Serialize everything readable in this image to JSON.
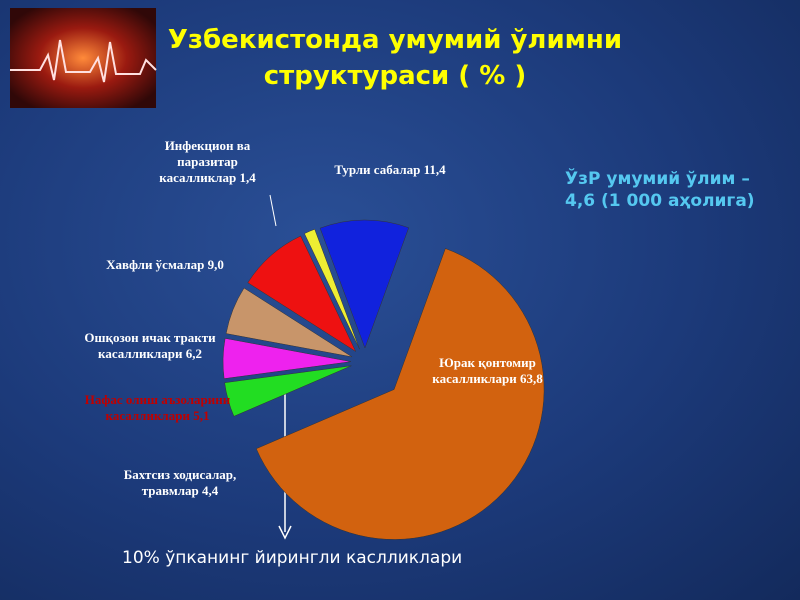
{
  "chart_data": {
    "type": "pie",
    "title": "Узбекистонда умумий ўлимни структураси ( % )",
    "categories": [
      "Юрак қонтомир касалликлари",
      "Бахтсиз ходисалар, травмлар",
      "Нафас олиш аъзоларини касалликлари",
      "Ошқозон ичак тракти касалликлари",
      "Хавфли ўсмалар",
      "Инфекцион ва паразитар касалликлар",
      "Турли сабалар"
    ],
    "values": [
      63.8,
      4.4,
      5.1,
      6.2,
      9.0,
      1.4,
      11.4
    ],
    "value_labels": [
      "63,8",
      "4,4",
      "5,1",
      "6,2",
      "9,0",
      "1,4",
      "11,4"
    ],
    "colors": [
      "#d2620f",
      "#22dd22",
      "#ee22ee",
      "#c8956a",
      "#ee1111",
      "#eeee33",
      "#1122dd"
    ],
    "annotations": [
      "ЎзР умумий ўлим – 4,6 (1 000 аҳолига)",
      "10% ўпканинг йирингли каслликлари"
    ]
  }
}
